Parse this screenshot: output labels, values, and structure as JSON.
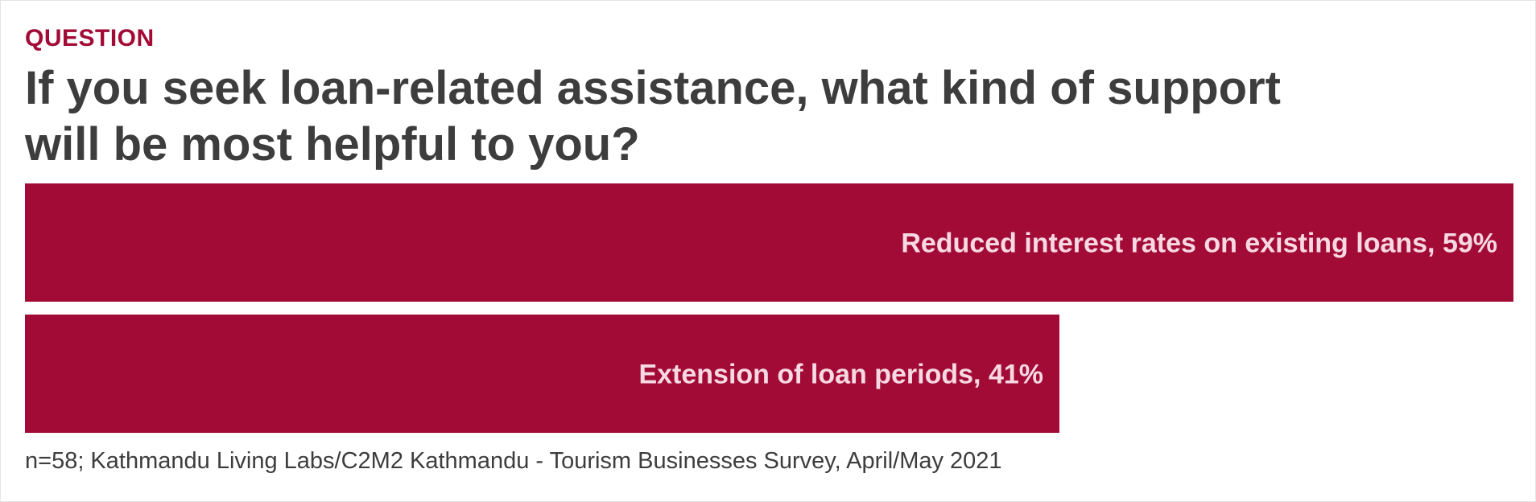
{
  "header": {
    "eyebrow": "QUESTION",
    "title": "If you seek loan-related assistance, what kind of support will be most helpful to you?"
  },
  "footer": {
    "source": "n=58; Kathmandu Living Labs/C2M2 Kathmandu - Tourism Businesses Survey, April/May 2021"
  },
  "colors": {
    "bar": "#a20b36",
    "bar_label": "#f6d9e2",
    "eyebrow": "#a20b36",
    "title": "#3d3d3d"
  },
  "chart_data": {
    "type": "bar",
    "orientation": "horizontal",
    "title": "If you seek loan-related assistance, what kind of support will be most helpful to you?",
    "categories": [
      "Reduced interest rates on existing loans",
      "Extension of loan periods"
    ],
    "values": [
      59,
      41
    ],
    "labels": [
      "Reduced interest rates on existing loans, 59%",
      "Extension of loan periods, 41%"
    ],
    "unit": "%",
    "xlim": [
      0,
      59
    ],
    "grid": false,
    "legend": "none"
  }
}
